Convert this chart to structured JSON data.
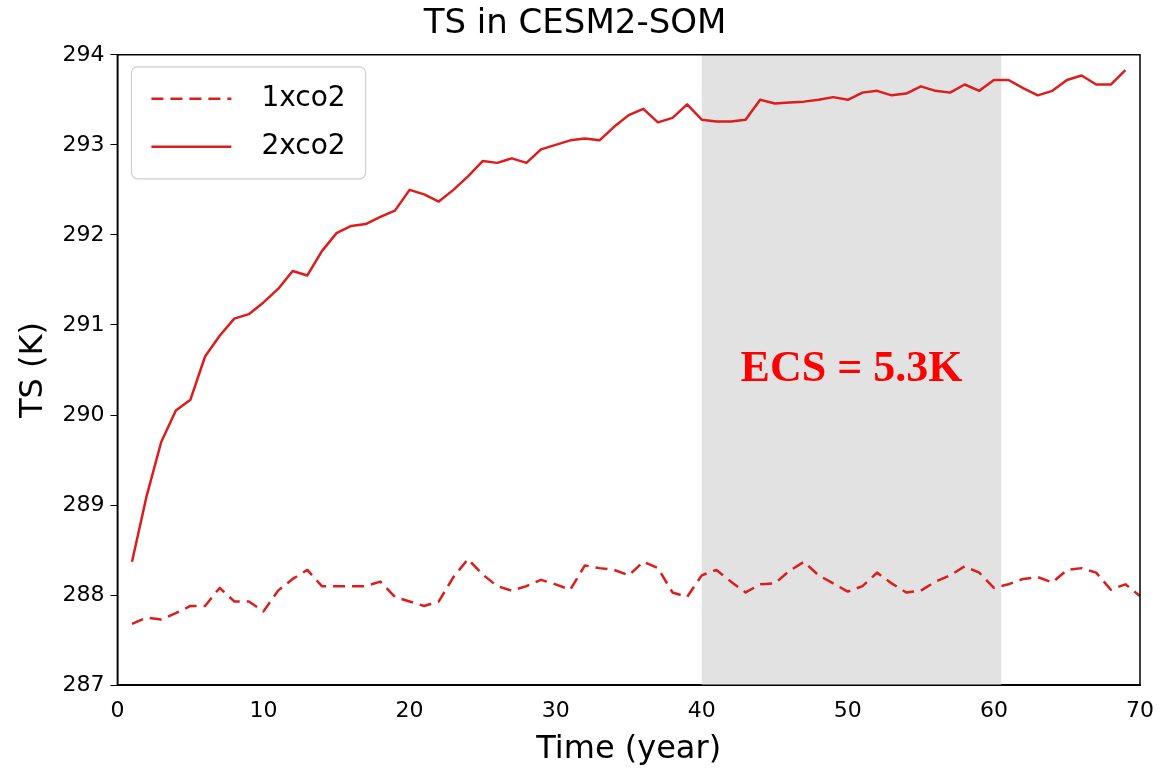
{
  "chart_data": {
    "type": "line",
    "title": "TS in CESM2-SOM",
    "xlabel": "Time (year)",
    "ylabel": "TS (K)",
    "series": [
      {
        "name": "1xco2",
        "color": "#dd1c1c",
        "line_style": "dashed",
        "x": [
          1,
          2,
          3,
          4,
          5,
          6,
          7,
          8,
          9,
          10,
          11,
          12,
          13,
          14,
          15,
          16,
          17,
          18,
          19,
          20,
          21,
          22,
          23,
          24,
          25,
          26,
          27,
          28,
          29,
          30,
          31,
          32,
          33,
          34,
          35,
          36,
          37,
          38,
          39,
          40,
          41,
          42,
          43,
          44,
          45,
          46,
          47,
          48,
          49,
          50,
          51,
          52,
          53,
          54,
          55,
          56,
          57,
          58,
          59,
          60,
          61,
          62,
          63,
          64,
          65,
          66,
          67,
          68,
          69,
          70
        ],
        "values": [
          287.68,
          287.75,
          287.73,
          287.8,
          287.88,
          287.88,
          288.08,
          287.93,
          287.93,
          287.82,
          288.05,
          288.18,
          288.28,
          288.1,
          288.1,
          288.1,
          288.1,
          288.15,
          287.98,
          287.93,
          287.88,
          287.93,
          288.2,
          288.4,
          288.23,
          288.1,
          288.05,
          288.1,
          288.17,
          288.12,
          288.06,
          288.33,
          288.3,
          288.28,
          288.22,
          288.37,
          288.3,
          288.03,
          287.98,
          288.22,
          288.28,
          288.15,
          288.03,
          288.12,
          288.13,
          288.27,
          288.37,
          288.22,
          288.13,
          288.04,
          288.1,
          288.25,
          288.13,
          288.03,
          288.05,
          288.15,
          288.22,
          288.32,
          288.25,
          288.08,
          288.12,
          288.18,
          288.2,
          288.14,
          288.28,
          288.3,
          288.25,
          288.06,
          288.12,
          287.99
        ]
      },
      {
        "name": "2xco2",
        "color": "#dd1c1c",
        "line_style": "solid",
        "x": [
          1,
          2,
          3,
          4,
          5,
          6,
          7,
          8,
          9,
          10,
          11,
          12,
          13,
          14,
          15,
          16,
          17,
          18,
          19,
          20,
          21,
          22,
          23,
          24,
          25,
          26,
          27,
          28,
          29,
          30,
          31,
          32,
          33,
          34,
          35,
          36,
          37,
          38,
          39,
          40,
          41,
          42,
          43,
          44,
          45,
          46,
          47,
          48,
          49,
          50,
          51,
          52,
          53,
          54,
          55,
          56,
          57,
          58,
          59,
          60,
          61,
          62,
          63,
          64,
          65,
          66,
          67,
          68,
          69
        ],
        "values": [
          288.37,
          289.1,
          289.7,
          290.05,
          290.17,
          290.65,
          290.88,
          291.07,
          291.12,
          291.25,
          291.4,
          291.6,
          291.55,
          291.82,
          292.02,
          292.1,
          292.12,
          292.2,
          292.27,
          292.5,
          292.45,
          292.37,
          292.5,
          292.65,
          292.82,
          292.8,
          292.85,
          292.8,
          292.95,
          293.0,
          293.05,
          293.07,
          293.05,
          293.2,
          293.33,
          293.4,
          293.25,
          293.3,
          293.45,
          293.28,
          293.26,
          293.26,
          293.28,
          293.5,
          293.46,
          293.47,
          293.48,
          293.5,
          293.53,
          293.5,
          293.58,
          293.6,
          293.55,
          293.57,
          293.65,
          293.6,
          293.58,
          293.67,
          293.6,
          293.72,
          293.72,
          293.63,
          293.55,
          293.6,
          293.72,
          293.77,
          293.67,
          293.67,
          293.83
        ]
      }
    ],
    "xlim": [
      0,
      70
    ],
    "xticks": [
      0,
      10,
      20,
      30,
      40,
      50,
      60,
      70
    ],
    "ylim": [
      287,
      294
    ],
    "yticks": [
      287,
      288,
      289,
      290,
      291,
      292,
      293,
      294
    ],
    "bands": [
      {
        "axis": "x",
        "from": 40,
        "to": 60.5,
        "color": "#e2e2e2"
      }
    ],
    "annotations": [
      "ECS = 5.3K"
    ],
    "legend": "top left",
    "grid": false,
    "marker": "none"
  }
}
